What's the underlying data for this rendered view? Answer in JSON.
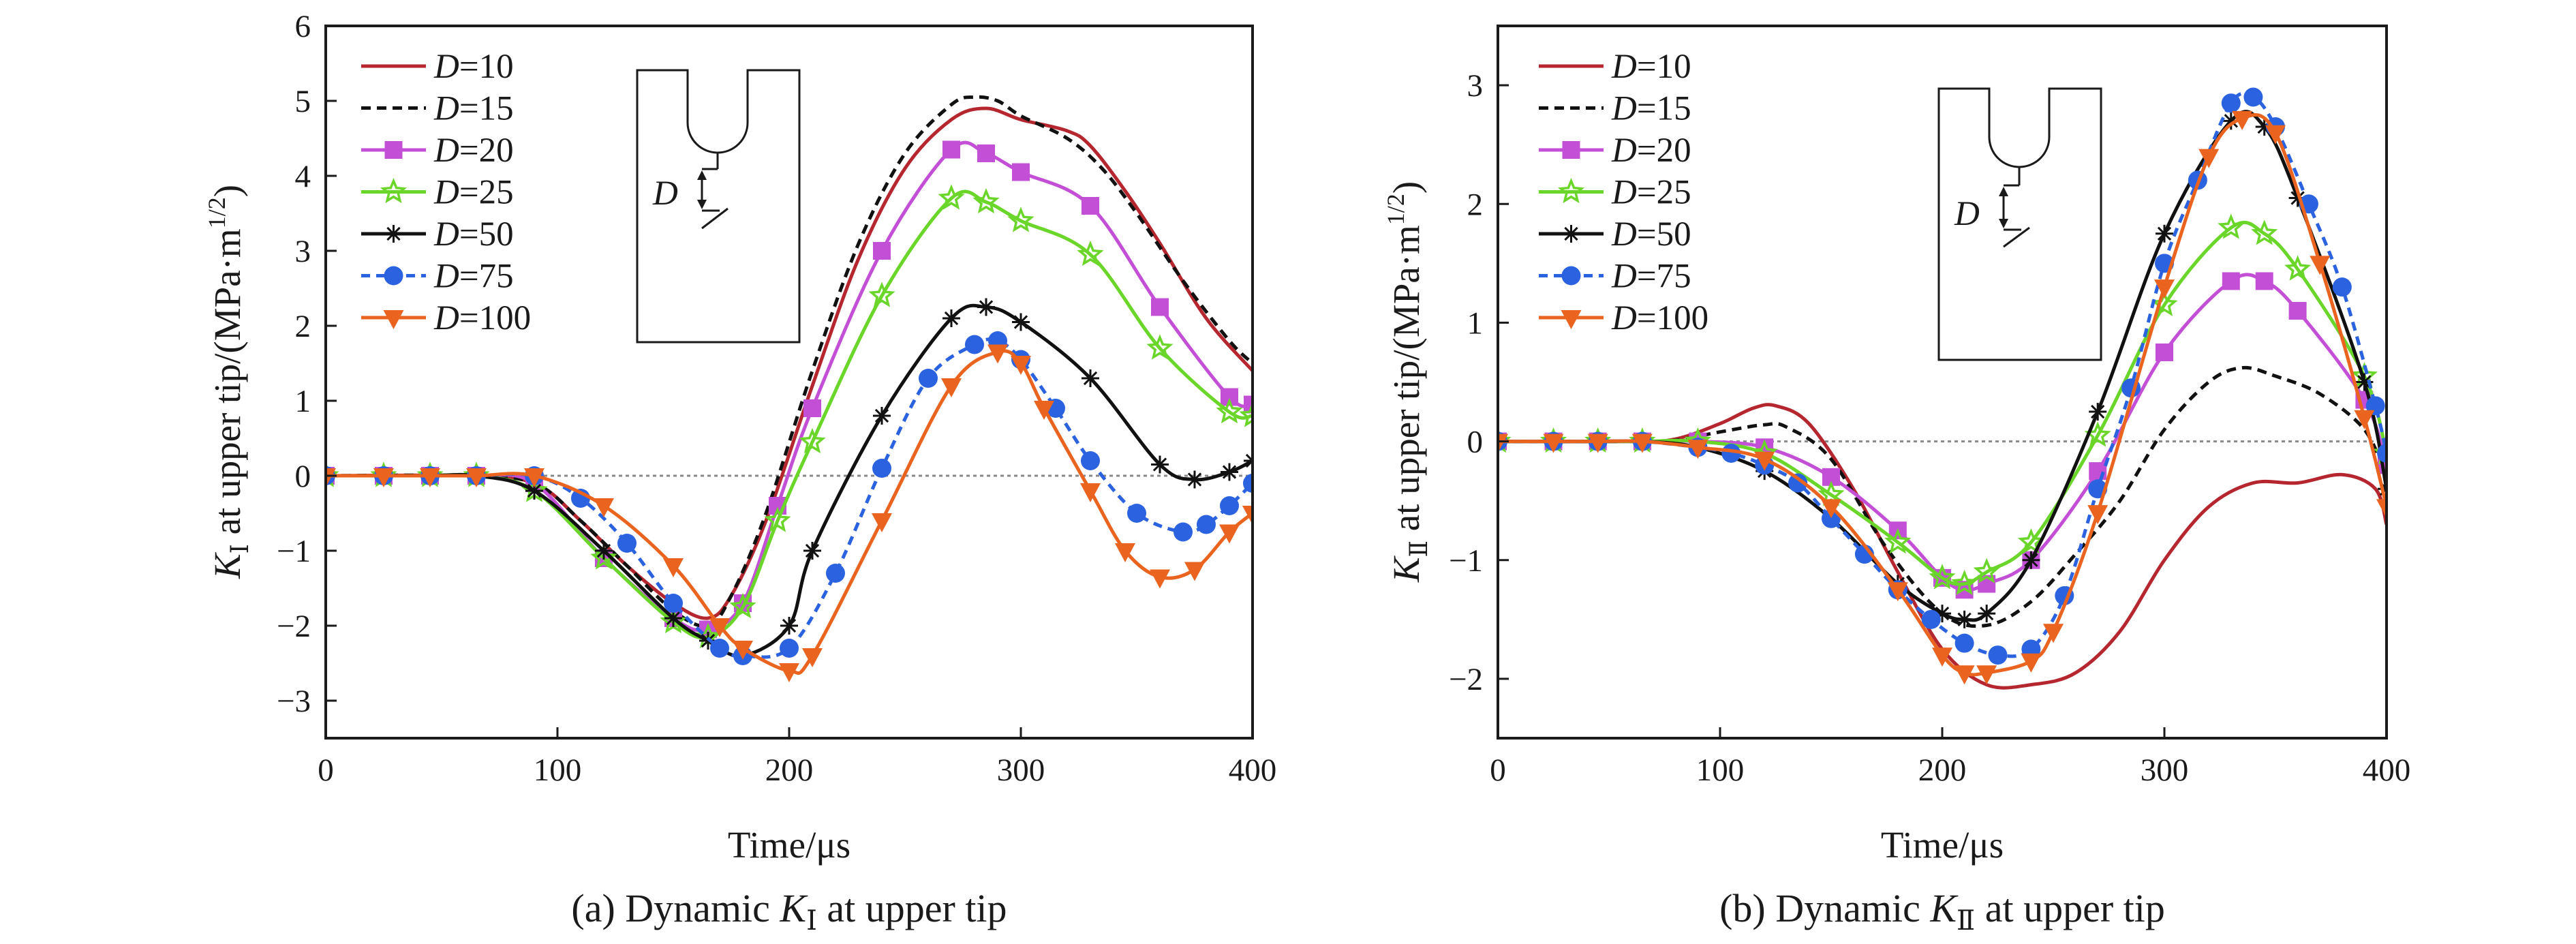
{
  "chart_data": [
    {
      "id": "a",
      "type": "line",
      "caption": {
        "prefix": "(a) Dynamic ",
        "sym": "K",
        "sub": "Ⅰ",
        "suffix": " at upper tip"
      },
      "ylabel": {
        "sym": "K",
        "sub": "Ⅰ",
        "rest": " at upper tip/(MPa·m",
        "sup": "1/2",
        "close": ")"
      },
      "xlabel": "Time/μs",
      "xlim": [
        0,
        400
      ],
      "ylim": [
        -3.5,
        6
      ],
      "xticks": [
        0,
        100,
        200,
        300,
        400
      ],
      "yticks": [
        -3,
        -2,
        -1,
        0,
        1,
        2,
        3,
        4,
        5,
        6
      ],
      "inset_label": "D",
      "series": [
        {
          "name": "D=10",
          "d": "10",
          "color": "#b5262f",
          "dash": "",
          "marker": "none",
          "x": [
            0,
            60,
            90,
            110,
            130,
            150,
            165,
            175,
            190,
            210,
            230,
            250,
            270,
            285,
            300,
            320,
            330,
            345,
            360,
            380,
            400
          ],
          "y": [
            0,
            0,
            -0.1,
            -0.6,
            -1.2,
            -1.7,
            -1.9,
            -1.6,
            -0.6,
            1.2,
            2.9,
            4.1,
            4.75,
            4.9,
            4.75,
            4.6,
            4.4,
            3.8,
            3.1,
            2.1,
            1.4
          ]
        },
        {
          "name": "D=15",
          "d": "15",
          "color": "#111111",
          "dash": "14 9",
          "marker": "none",
          "x": [
            0,
            60,
            90,
            110,
            130,
            150,
            165,
            175,
            190,
            210,
            230,
            250,
            270,
            280,
            290,
            300,
            320,
            335,
            350,
            370,
            390,
            400
          ],
          "y": [
            0,
            0,
            -0.1,
            -0.6,
            -1.2,
            -1.8,
            -2.0,
            -1.6,
            -0.5,
            1.4,
            3.1,
            4.3,
            4.95,
            5.05,
            5.0,
            4.8,
            4.5,
            4.1,
            3.5,
            2.6,
            1.8,
            1.5
          ]
        },
        {
          "name": "D=20",
          "d": "20",
          "color": "#c34fd6",
          "dash": "",
          "marker": "square",
          "x": [
            0,
            25,
            45,
            65,
            90,
            120,
            150,
            165,
            180,
            195,
            210,
            240,
            270,
            285,
            300,
            330,
            360,
            390,
            400
          ],
          "y": [
            0,
            0,
            0,
            0,
            -0.1,
            -1.1,
            -1.9,
            -2.05,
            -1.7,
            -0.4,
            0.9,
            3.0,
            4.35,
            4.3,
            4.05,
            3.6,
            2.25,
            1.05,
            0.95
          ]
        },
        {
          "name": "D=25",
          "d": "25",
          "color": "#6ad62a",
          "dash": "",
          "marker": "star",
          "x": [
            0,
            25,
            45,
            65,
            90,
            120,
            150,
            165,
            180,
            195,
            210,
            240,
            270,
            285,
            300,
            330,
            360,
            390,
            400
          ],
          "y": [
            0,
            0,
            0,
            0,
            -0.2,
            -1.1,
            -1.95,
            -2.15,
            -1.75,
            -0.6,
            0.45,
            2.4,
            3.7,
            3.65,
            3.4,
            2.95,
            1.7,
            0.85,
            0.8
          ]
        },
        {
          "name": "D=50",
          "d": "50",
          "color": "#111111",
          "dash": "",
          "marker": "asterisk",
          "x": [
            0,
            25,
            45,
            65,
            90,
            120,
            150,
            165,
            180,
            200,
            210,
            240,
            270,
            285,
            300,
            330,
            360,
            375,
            390,
            400
          ],
          "y": [
            0,
            0,
            0,
            0,
            -0.2,
            -1.0,
            -1.9,
            -2.2,
            -2.4,
            -2.0,
            -1.0,
            0.8,
            2.1,
            2.25,
            2.05,
            1.3,
            0.15,
            -0.05,
            0.05,
            0.2
          ]
        },
        {
          "name": "D=75",
          "d": "75",
          "color": "#2a62e0",
          "dash": "13 9",
          "marker": "circle",
          "x": [
            0,
            25,
            45,
            65,
            90,
            110,
            130,
            150,
            170,
            180,
            200,
            220,
            240,
            260,
            280,
            290,
            300,
            315,
            330,
            350,
            370,
            380,
            390,
            400
          ],
          "y": [
            0,
            0,
            0,
            0,
            0,
            -0.3,
            -0.9,
            -1.7,
            -2.3,
            -2.4,
            -2.3,
            -1.3,
            0.1,
            1.3,
            1.75,
            1.8,
            1.55,
            0.9,
            0.2,
            -0.5,
            -0.75,
            -0.65,
            -0.4,
            -0.1
          ]
        },
        {
          "name": "D=100",
          "d": "100",
          "color": "#ea6420",
          "dash": "",
          "marker": "triangle",
          "x": [
            0,
            25,
            45,
            65,
            90,
            120,
            150,
            170,
            180,
            200,
            210,
            240,
            270,
            290,
            300,
            310,
            330,
            345,
            360,
            375,
            390,
            400
          ],
          "y": [
            0,
            0,
            0,
            0,
            0,
            -0.4,
            -1.2,
            -2.0,
            -2.3,
            -2.6,
            -2.4,
            -0.6,
            1.2,
            1.65,
            1.5,
            0.9,
            -0.2,
            -1.0,
            -1.35,
            -1.25,
            -0.75,
            -0.5
          ]
        }
      ]
    },
    {
      "id": "b",
      "type": "line",
      "caption": {
        "prefix": "(b) Dynamic ",
        "sym": "K",
        "sub": "Ⅱ",
        "suffix": " at upper tip"
      },
      "ylabel": {
        "sym": "K",
        "sub": "Ⅱ",
        "rest": " at upper tip/(MPa·m",
        "sup": "1/2",
        "close": ")"
      },
      "xlabel": "Time/μs",
      "xlim": [
        0,
        400
      ],
      "ylim": [
        -2.5,
        3.5
      ],
      "xticks": [
        0,
        100,
        200,
        300,
        400
      ],
      "yticks": [
        -2,
        -1,
        0,
        1,
        2,
        3
      ],
      "inset_label": "D",
      "series": [
        {
          "name": "D=10",
          "d": "10",
          "color": "#b5262f",
          "dash": "",
          "marker": "none",
          "x": [
            0,
            60,
            80,
            100,
            115,
            125,
            140,
            160,
            180,
            200,
            220,
            240,
            260,
            280,
            300,
            320,
            340,
            360,
            380,
            395,
            400
          ],
          "y": [
            0,
            0,
            0.02,
            0.15,
            0.28,
            0.3,
            0.15,
            -0.4,
            -1.1,
            -1.75,
            -2.05,
            -2.05,
            -1.95,
            -1.6,
            -1.0,
            -0.55,
            -0.35,
            -0.35,
            -0.28,
            -0.4,
            -0.7
          ]
        },
        {
          "name": "D=15",
          "d": "15",
          "color": "#111111",
          "dash": "14 9",
          "marker": "none",
          "x": [
            0,
            60,
            80,
            100,
            120,
            130,
            150,
            175,
            200,
            220,
            240,
            260,
            280,
            300,
            320,
            335,
            350,
            370,
            390,
            400
          ],
          "y": [
            0,
            0,
            0.01,
            0.08,
            0.14,
            0.12,
            -0.15,
            -0.9,
            -1.45,
            -1.55,
            -1.35,
            -0.95,
            -0.5,
            0.1,
            0.5,
            0.62,
            0.55,
            0.4,
            0.1,
            -0.3
          ]
        },
        {
          "name": "D=20",
          "d": "20",
          "color": "#c34fd6",
          "dash": "",
          "marker": "square",
          "x": [
            0,
            25,
            45,
            65,
            90,
            120,
            150,
            180,
            200,
            210,
            220,
            240,
            270,
            300,
            330,
            345,
            360,
            390,
            400
          ],
          "y": [
            0,
            0,
            0,
            0,
            0,
            -0.05,
            -0.3,
            -0.75,
            -1.15,
            -1.25,
            -1.2,
            -1.0,
            -0.25,
            0.75,
            1.35,
            1.35,
            1.1,
            0.35,
            -0.2
          ]
        },
        {
          "name": "D=25",
          "d": "25",
          "color": "#6ad62a",
          "dash": "",
          "marker": "star",
          "x": [
            0,
            25,
            45,
            65,
            90,
            120,
            150,
            180,
            200,
            210,
            220,
            240,
            270,
            300,
            330,
            345,
            360,
            390,
            400
          ],
          "y": [
            0,
            0,
            0,
            0,
            0,
            -0.1,
            -0.45,
            -0.85,
            -1.15,
            -1.2,
            -1.1,
            -0.85,
            0.05,
            1.15,
            1.8,
            1.75,
            1.45,
            0.55,
            -0.1
          ]
        },
        {
          "name": "D=50",
          "d": "50",
          "color": "#111111",
          "dash": "",
          "marker": "asterisk",
          "x": [
            0,
            25,
            45,
            65,
            90,
            120,
            150,
            180,
            200,
            210,
            220,
            240,
            270,
            300,
            330,
            345,
            360,
            390,
            400
          ],
          "y": [
            0,
            0,
            0,
            0,
            -0.05,
            -0.25,
            -0.65,
            -1.2,
            -1.45,
            -1.5,
            -1.45,
            -1.0,
            0.25,
            1.75,
            2.7,
            2.65,
            2.05,
            0.5,
            -0.4
          ]
        },
        {
          "name": "D=75",
          "d": "75",
          "color": "#2a62e0",
          "dash": "13 9",
          "marker": "circle",
          "x": [
            0,
            25,
            45,
            65,
            90,
            105,
            120,
            135,
            150,
            165,
            180,
            195,
            210,
            225,
            240,
            255,
            270,
            285,
            300,
            315,
            330,
            340,
            350,
            365,
            380,
            395,
            400
          ],
          "y": [
            0,
            0,
            0,
            0,
            -0.05,
            -0.1,
            -0.2,
            -0.35,
            -0.65,
            -0.95,
            -1.25,
            -1.5,
            -1.7,
            -1.8,
            -1.75,
            -1.3,
            -0.4,
            0.45,
            1.5,
            2.2,
            2.85,
            2.9,
            2.65,
            2.0,
            1.3,
            0.3,
            -0.1
          ]
        },
        {
          "name": "D=100",
          "d": "100",
          "color": "#ea6420",
          "dash": "",
          "marker": "triangle",
          "x": [
            0,
            25,
            45,
            65,
            90,
            120,
            150,
            180,
            200,
            210,
            220,
            240,
            250,
            270,
            300,
            320,
            335,
            350,
            370,
            390,
            400
          ],
          "y": [
            0,
            0,
            0,
            0,
            -0.05,
            -0.15,
            -0.55,
            -1.25,
            -1.8,
            -1.95,
            -1.95,
            -1.85,
            -1.6,
            -0.6,
            1.3,
            2.4,
            2.72,
            2.6,
            1.5,
            0.2,
            -0.55
          ]
        }
      ]
    }
  ]
}
